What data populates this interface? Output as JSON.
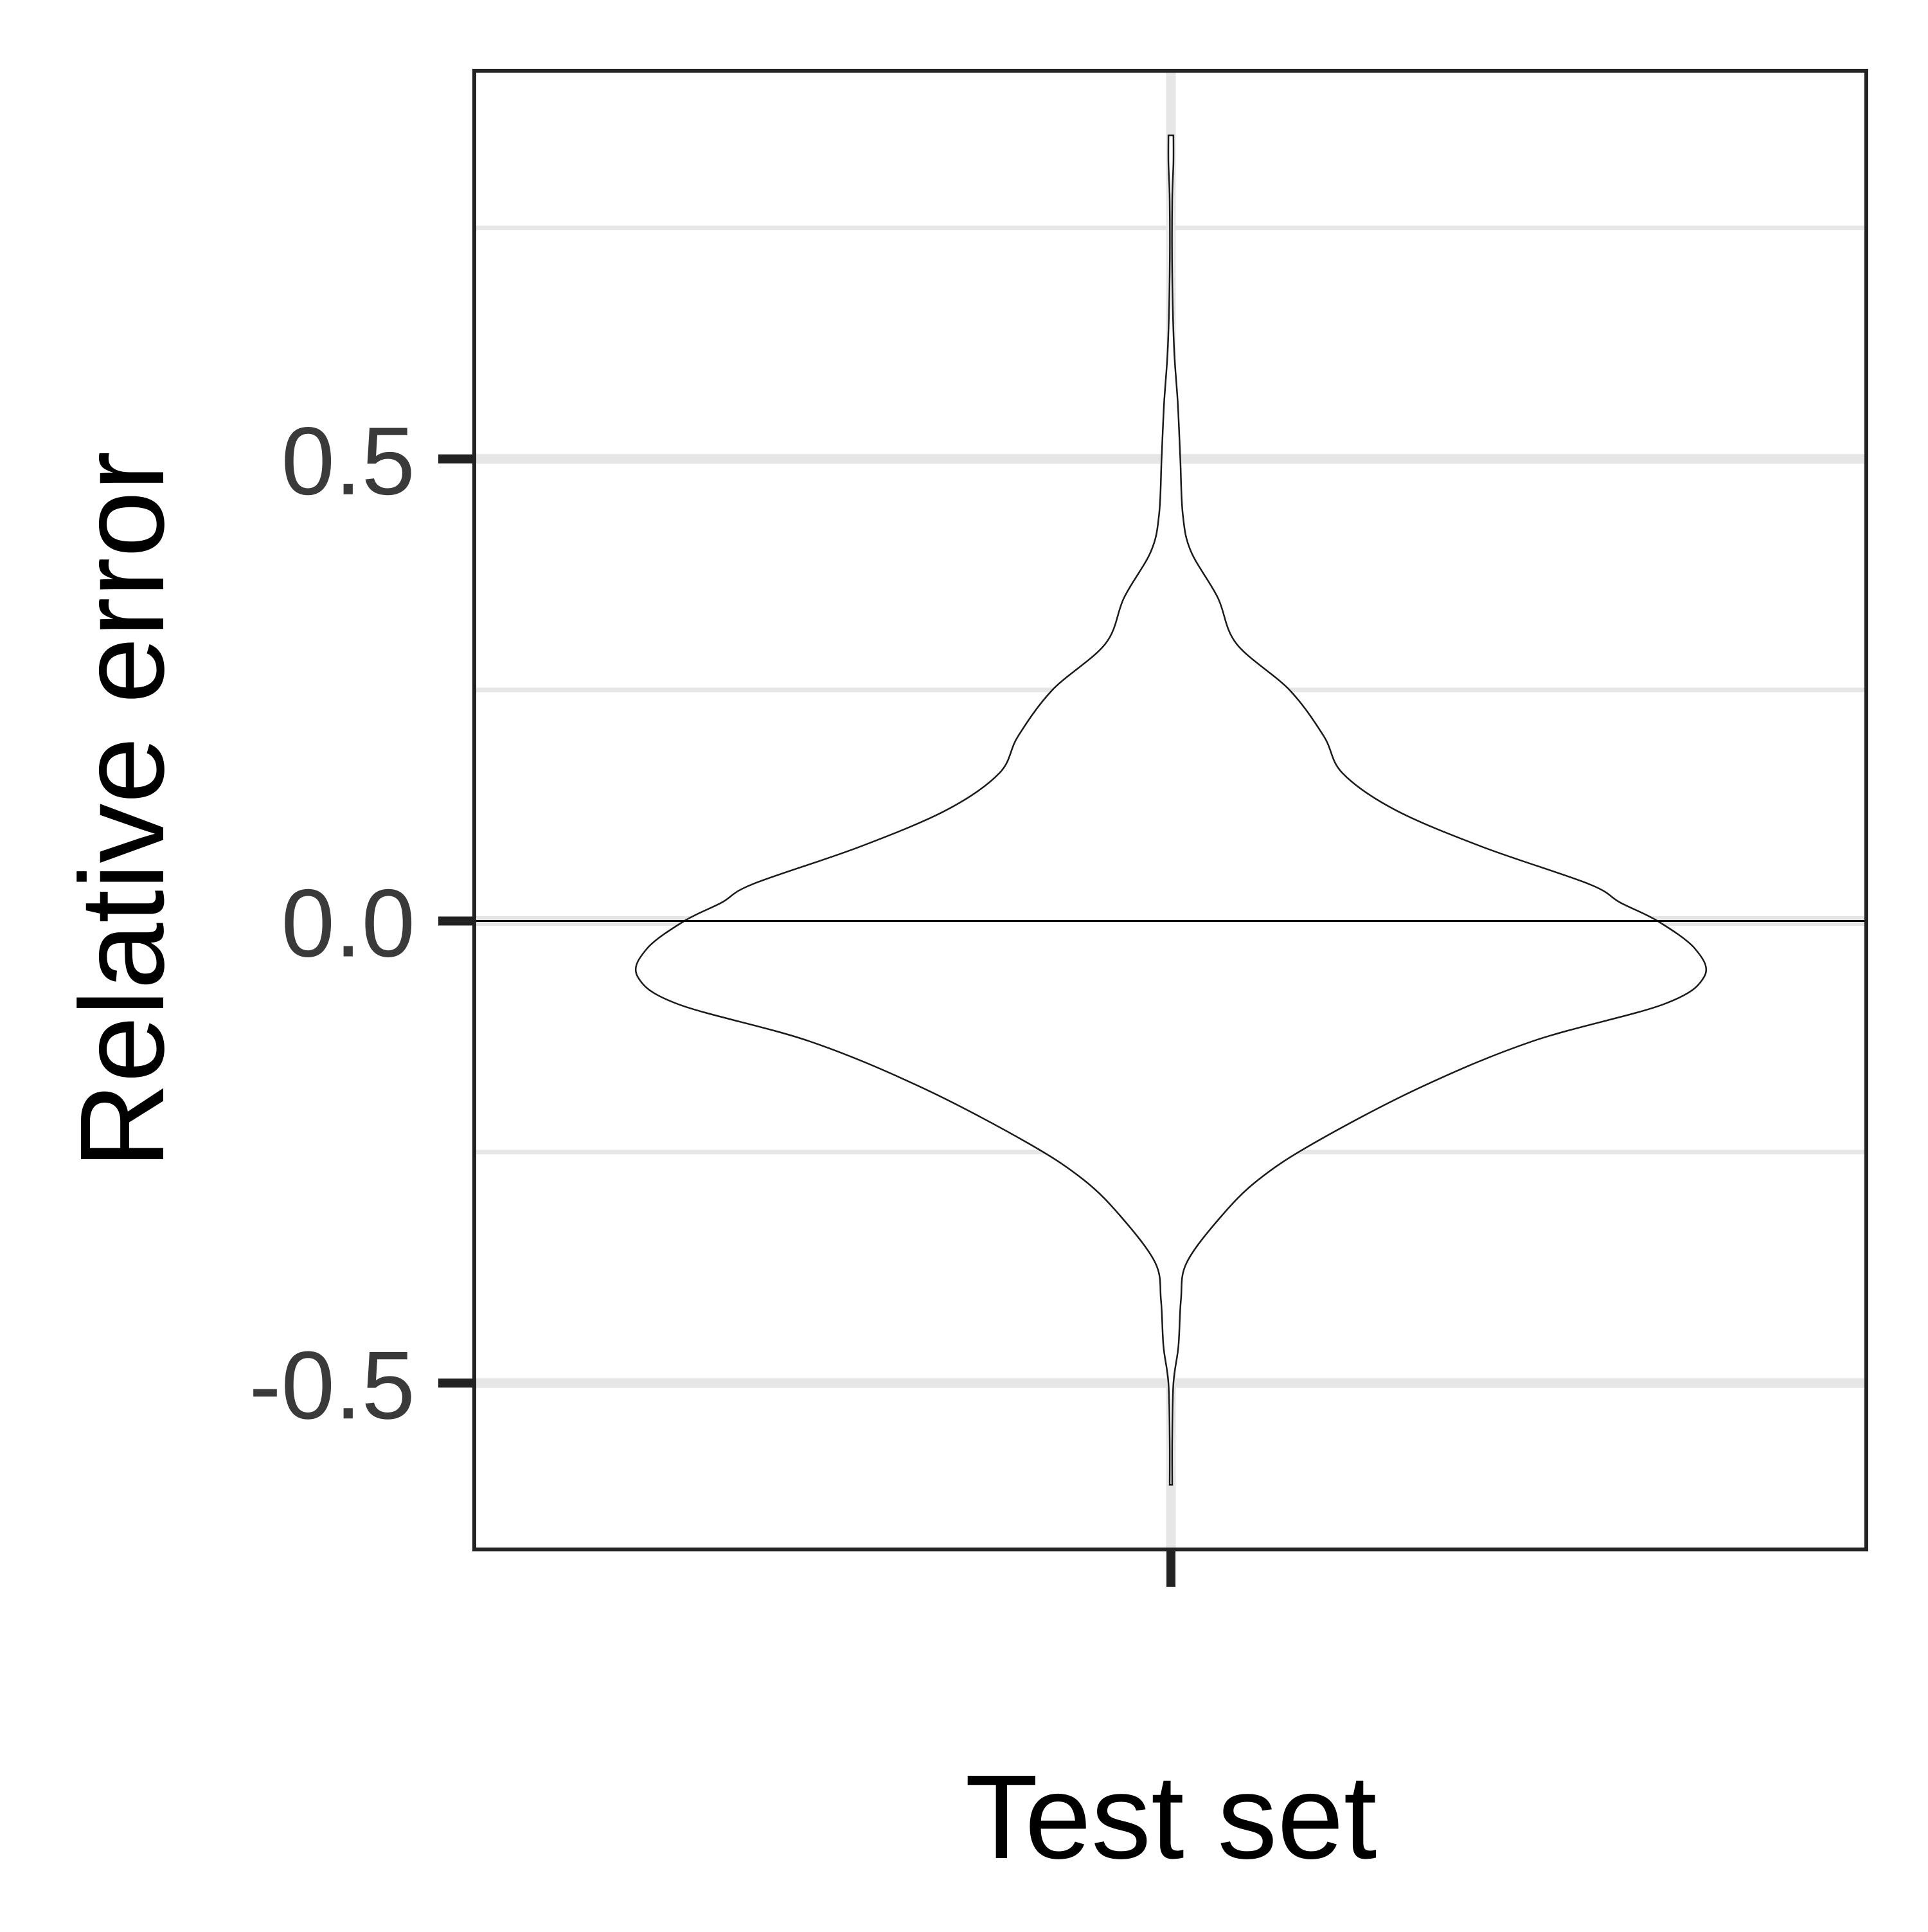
{
  "chart_data": {
    "type": "violin",
    "categories": [
      "Test set"
    ],
    "xlabel": "Test set",
    "ylabel": "Relative error",
    "ylim": [
      -0.68,
      0.92
    ],
    "yticks": [
      {
        "value": 0.5,
        "label": "0.5"
      },
      {
        "value": 0.0,
        "label": "0.0"
      },
      {
        "value": -0.5,
        "label": "-0.5"
      }
    ],
    "minor_gridlines": [
      0.75,
      0.25,
      -0.25
    ],
    "grid": true,
    "reference_line": 0.0,
    "series": [
      {
        "category": "Test set",
        "min": -0.61,
        "max": 0.85,
        "density_profile": [
          {
            "y": 0.85,
            "halfwidth": 0.004
          },
          {
            "y": 0.82,
            "halfwidth": 0.004
          },
          {
            "y": 0.78,
            "halfwidth": 0.002
          },
          {
            "y": 0.7,
            "halfwidth": 0.002
          },
          {
            "y": 0.62,
            "halfwidth": 0.005
          },
          {
            "y": 0.56,
            "halfwidth": 0.011
          },
          {
            "y": 0.5,
            "halfwidth": 0.015
          },
          {
            "y": 0.44,
            "halfwidth": 0.019
          },
          {
            "y": 0.4,
            "halfwidth": 0.032
          },
          {
            "y": 0.35,
            "halfwidth": 0.075
          },
          {
            "y": 0.3,
            "halfwidth": 0.105
          },
          {
            "y": 0.25,
            "halfwidth": 0.19
          },
          {
            "y": 0.2,
            "halfwidth": 0.245
          },
          {
            "y": 0.16,
            "halfwidth": 0.275
          },
          {
            "y": 0.12,
            "halfwidth": 0.36
          },
          {
            "y": 0.08,
            "halfwidth": 0.5
          },
          {
            "y": 0.04,
            "halfwidth": 0.67
          },
          {
            "y": 0.02,
            "halfwidth": 0.72
          },
          {
            "y": 0.0,
            "halfwidth": 0.78
          },
          {
            "y": -0.03,
            "halfwidth": 0.84
          },
          {
            "y": -0.06,
            "halfwidth": 0.855
          },
          {
            "y": -0.09,
            "halfwidth": 0.79
          },
          {
            "y": -0.13,
            "halfwidth": 0.58
          },
          {
            "y": -0.18,
            "halfwidth": 0.4
          },
          {
            "y": -0.24,
            "halfwidth": 0.23
          },
          {
            "y": -0.28,
            "halfwidth": 0.14
          },
          {
            "y": -0.32,
            "halfwidth": 0.08
          },
          {
            "y": -0.37,
            "halfwidth": 0.025
          },
          {
            "y": -0.41,
            "halfwidth": 0.016
          },
          {
            "y": -0.46,
            "halfwidth": 0.012
          },
          {
            "y": -0.5,
            "halfwidth": 0.004
          },
          {
            "y": -0.56,
            "halfwidth": 0.002
          },
          {
            "y": -0.61,
            "halfwidth": 0.002
          }
        ]
      }
    ],
    "colors": {
      "outline": "#1a1a1a",
      "grid": "#e6e6e6",
      "panel_border": "#222222",
      "ticks": "#222222"
    }
  }
}
